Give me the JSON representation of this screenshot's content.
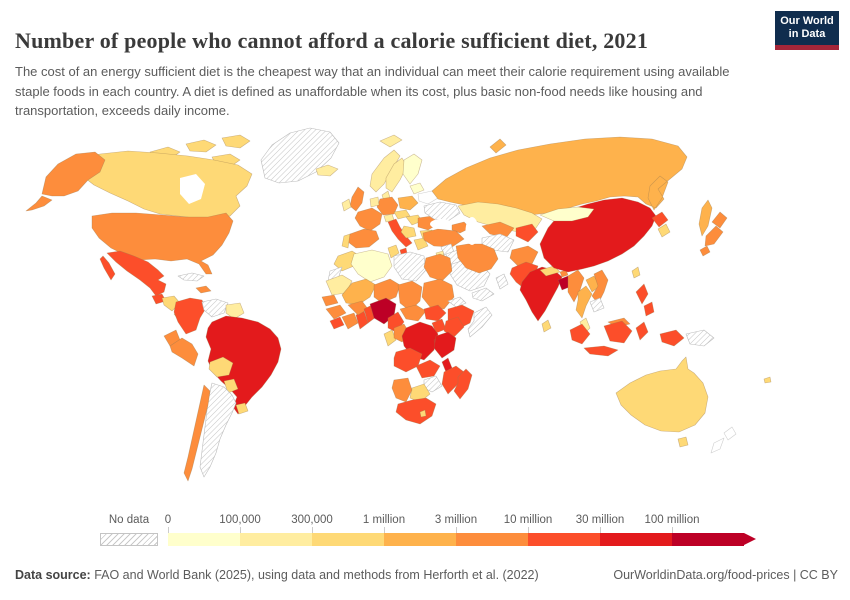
{
  "header": {
    "title": "Number of people who cannot afford a calorie sufficient diet, 2021",
    "subtitle": "The cost of an energy sufficient diet is the cheapest way that an individual can meet their calorie requirement using available staple foods in each country. A diet is defined as unaffordable when its cost, plus basic non-food needs like housing and transportation, exceeds daily income.",
    "logo": {
      "line1": "Our World",
      "line2": "in Data",
      "bg_color": "#102d4e",
      "accent_color": "#a52639"
    }
  },
  "legend": {
    "no_data_label": "No data",
    "tick_labels": [
      "0",
      "100,000",
      "300,000",
      "1 million",
      "3 million",
      "10 million",
      "30 million",
      "100 million"
    ],
    "palette": [
      "#ffffcc",
      "#ffeda0",
      "#fed976",
      "#feb24c",
      "#fd8d3c",
      "#fc4e2a",
      "#e31a1c",
      "#bd0026"
    ]
  },
  "footer": {
    "source_label": "Data source:",
    "source_text": " FAO and World Bank (2025), using data and methods from Herforth et al. (2022)",
    "right_text": "OurWorldinData.org/food-prices | CC BY"
  },
  "chart_data": {
    "type": "choropleth",
    "title": "Number of people who cannot afford a calorie sufficient diet, 2021",
    "unit": "people",
    "bucket_bounds": [
      "0",
      "100,000",
      "300,000",
      "1 million",
      "3 million",
      "10 million",
      "30 million",
      "100 million",
      ">100 million"
    ],
    "legend_position": "bottom"
  },
  "map": {
    "countries": {
      "greenland": "no_data",
      "canada": 2,
      "canada-arctic": 2,
      "alaska": 4,
      "usa": 4,
      "mexico": 5,
      "guatemala": 5,
      "honduras-nicaragua": 2,
      "costa-rica-panama": 3,
      "cuba": "no_data",
      "hispaniola": 4,
      "colombia": 5,
      "venezuela": "no_data",
      "guyana-suriname": 1,
      "ecuador": 4,
      "peru": 4,
      "brazil": 6,
      "bolivia": 2,
      "paraguay": 2,
      "uruguay": 2,
      "argentina": "no_data",
      "chile": 4,
      "iceland": 1,
      "norway": 1,
      "sweden": 1,
      "finland": 0,
      "baltics": 0,
      "uk": 4,
      "ireland": 1,
      "denmark": 1,
      "germany": 4,
      "benelux": 1,
      "france": 4,
      "spain": 4,
      "portugal": 2,
      "switzerland": 1,
      "italy": 5,
      "austria-czech": 2,
      "poland": 3,
      "hungary-slovakia": 2,
      "romania": 4,
      "balkans": 2,
      "bulgaria": 2,
      "greece": 2,
      "belarus": "none",
      "ukraine": "no_data",
      "russia": 3,
      "novaya-zemlya": 3,
      "svalbard": 1,
      "kazakhstan": 1,
      "uzbekistan": 4,
      "turkmenistan": "no_data",
      "kyrgyzstan-tajikistan": 5,
      "caucasus": 4,
      "turkey": 4,
      "syria": "no_data",
      "iraq": "no_data",
      "jordan-israel": 1,
      "saudi-arabia": "no_data",
      "yemen": "no_data",
      "oman": "no_data",
      "iran": 4,
      "afghanistan": 4,
      "pakistan": 5,
      "india": 6,
      "nepal": 2,
      "bhutan": 4,
      "bangladesh": 7,
      "sri-lanka": 2,
      "china": 6,
      "mongolia": 0,
      "north-korea": 5,
      "south-korea": 2,
      "japan": 4,
      "taiwan": 2,
      "myanmar": 4,
      "thailand": 3,
      "laos": 3,
      "vietnam": 4,
      "cambodia": "no_data",
      "malaysia-peninsula": 1,
      "malaysia-borneo": 4,
      "philippines": 5,
      "indonesia": 5,
      "papua-new-guinea": "no_data",
      "australia": 2,
      "new-zealand": "none",
      "fiji": 2,
      "morocco": 2,
      "western-sahara": "no_data",
      "algeria": 0,
      "tunisia": 2,
      "libya": "no_data",
      "egypt": 4,
      "mauritania": 1,
      "senegal": 4,
      "mali": 3,
      "niger": 4,
      "chad": 4,
      "sudan": 4,
      "eritrea": "no_data",
      "ethiopia": 5,
      "somalia": "no_data",
      "guinea": 4,
      "sierra-leone-liberia": 5,
      "ivory-coast": 4,
      "ghana": 5,
      "burkina-faso": 4,
      "togo-benin": 5,
      "nigeria": 7,
      "cameroon": 5,
      "central-african-republic": 4,
      "south-sudan": 5,
      "uganda": 5,
      "kenya": 5,
      "gabon": 2,
      "congo": 4,
      "drc": 6,
      "rwanda-burundi": 6,
      "tanzania": 6,
      "angola": 5,
      "zambia": 5,
      "malawi": 6,
      "mozambique": 5,
      "zimbabwe": "no_data",
      "botswana": 2,
      "namibia": 4,
      "south-africa": 5,
      "lesotho": 2,
      "madagascar": 5
    }
  }
}
